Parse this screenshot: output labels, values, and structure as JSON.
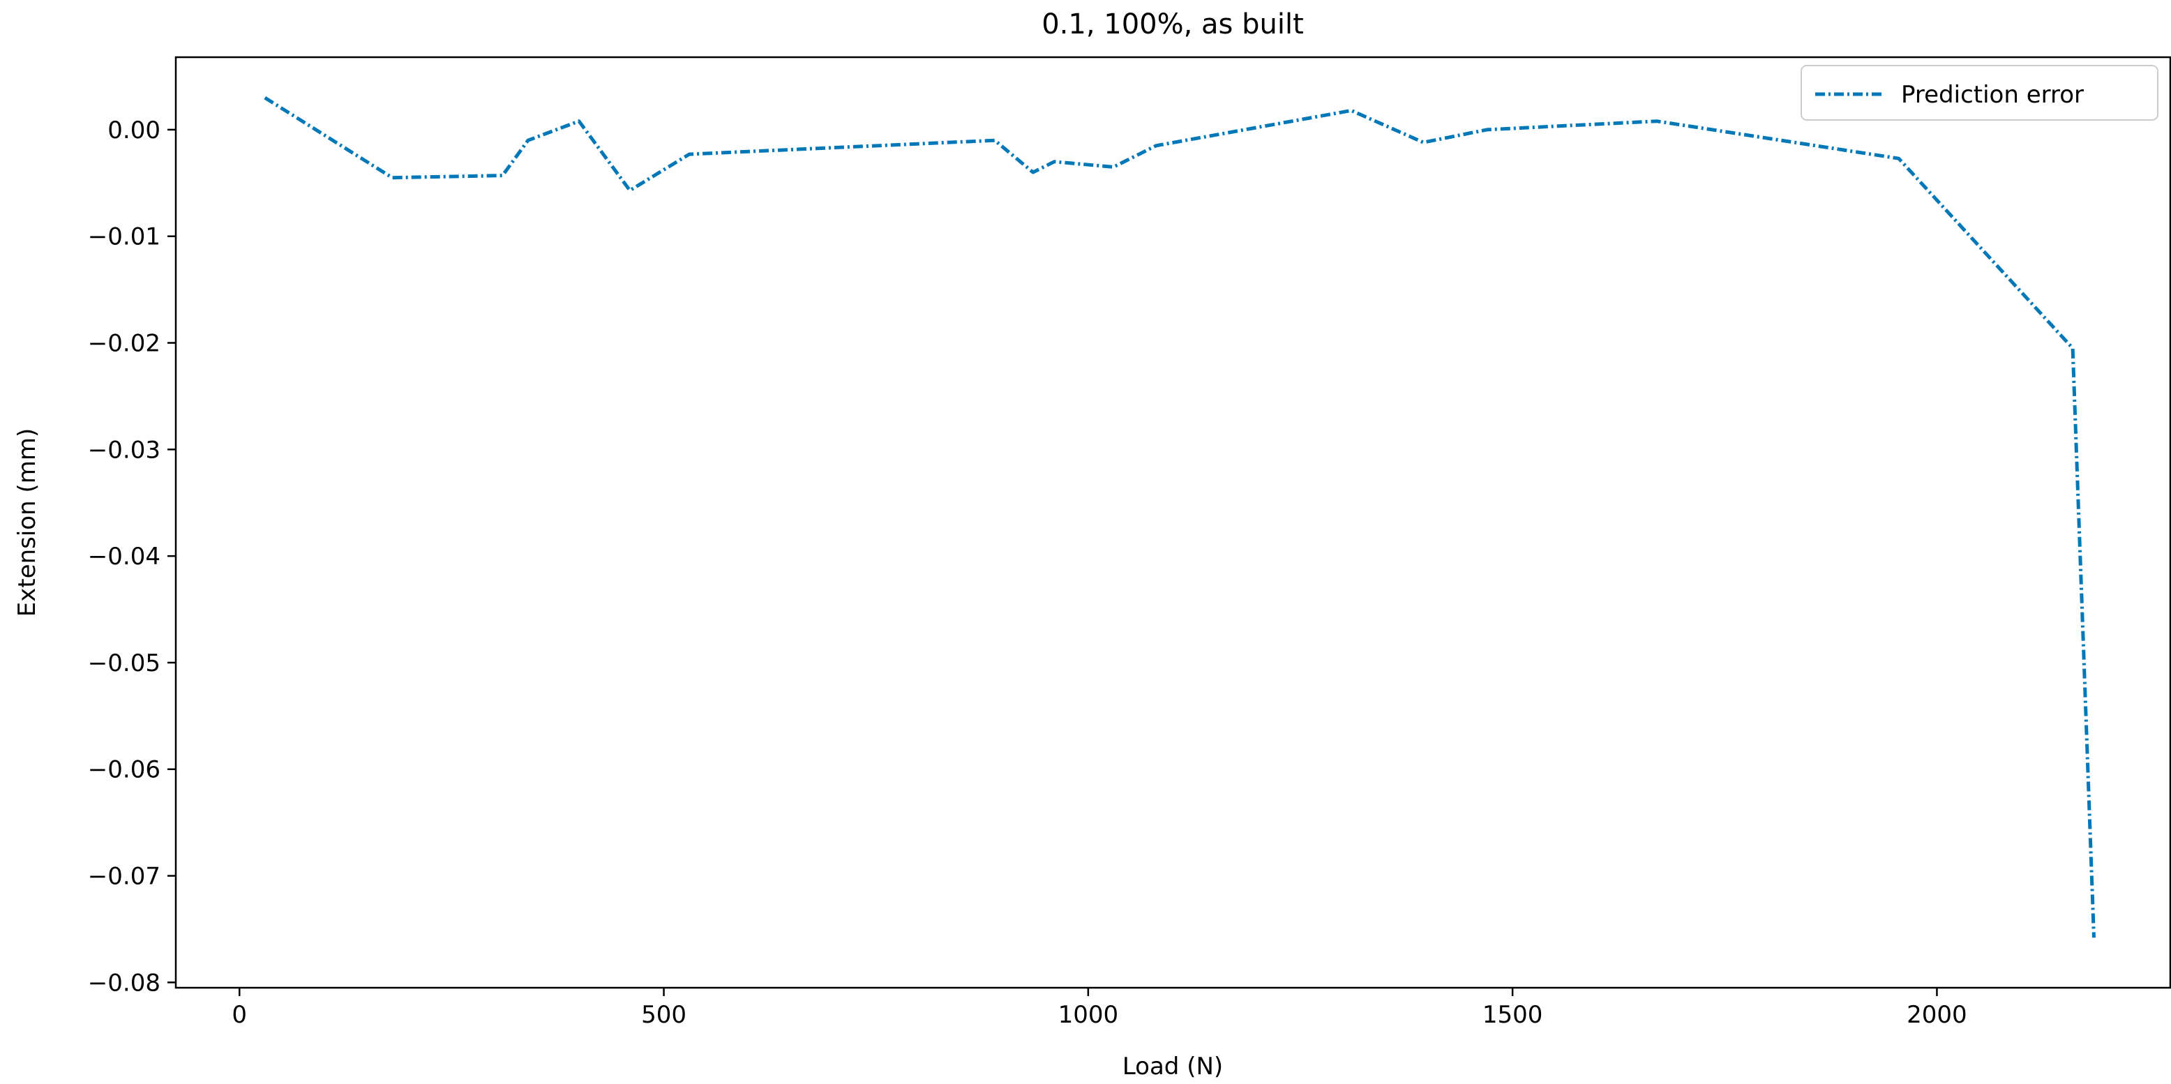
{
  "chart_data": {
    "type": "line",
    "title": "0.1, 100%, as built",
    "xlabel": "Load (N)",
    "ylabel": "Extension (mm)",
    "xlim": [
      -75,
      2275
    ],
    "ylim": [
      -0.0805,
      0.0068
    ],
    "xticks": [
      0,
      500,
      1000,
      1500,
      2000
    ],
    "xtick_labels": [
      "0",
      "500",
      "1000",
      "1500",
      "2000"
    ],
    "yticks": [
      0.0,
      -0.01,
      -0.02,
      -0.03,
      -0.04,
      -0.05,
      -0.06,
      -0.07,
      -0.08
    ],
    "ytick_labels": [
      "0.00",
      "−0.01",
      "−0.02",
      "−0.03",
      "−0.04",
      "−0.05",
      "−0.06",
      "−0.07",
      "−0.08"
    ],
    "grid": false,
    "legend_position": "top-right",
    "series": [
      {
        "name": "Prediction error",
        "color": "#0077b6",
        "line_style": "dash-dot",
        "x": [
          30,
          180,
          310,
          340,
          400,
          460,
          530,
          890,
          935,
          960,
          1030,
          1080,
          1310,
          1395,
          1470,
          1670,
          1955,
          2160,
          2185
        ],
        "y": [
          0.003,
          -0.0045,
          -0.0043,
          -0.001,
          0.0008,
          -0.0057,
          -0.0023,
          -0.001,
          -0.004,
          -0.003,
          -0.0035,
          -0.0015,
          0.0018,
          -0.0012,
          0.0,
          0.0008,
          -0.0027,
          -0.0205,
          -0.0758
        ]
      }
    ]
  }
}
